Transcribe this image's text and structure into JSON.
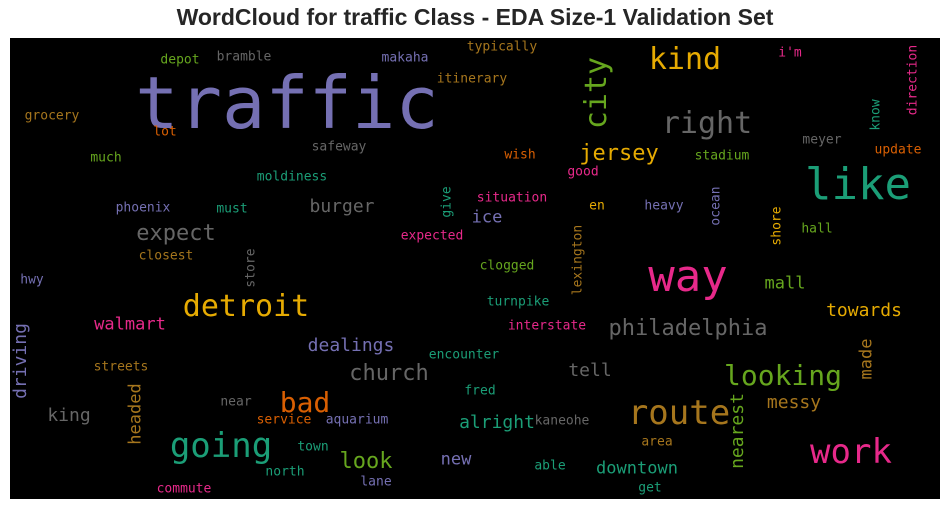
{
  "title": "WordCloud for traffic Class - EDA Size-1 Validation Set",
  "chart_data": {
    "type": "wordcloud",
    "title": "WordCloud for traffic Class - EDA Size-1 Validation Set",
    "background": "#000000",
    "palette": {
      "purple": "#7570b3",
      "green": "#1b9e77",
      "pink": "#e7298a",
      "orange": "#e6ab02",
      "brown": "#a6761d",
      "gray": "#666666",
      "lime": "#66a61e",
      "rust": "#d95f02"
    },
    "words": [
      {
        "text": "traffic",
        "color": "purple"
      },
      {
        "text": "way",
        "color": "pink"
      },
      {
        "text": "like",
        "color": "green"
      },
      {
        "text": "route",
        "color": "brown"
      },
      {
        "text": "going",
        "color": "green"
      },
      {
        "text": "detroit",
        "color": "orange"
      },
      {
        "text": "work",
        "color": "pink"
      },
      {
        "text": "kind",
        "color": "orange"
      },
      {
        "text": "right",
        "color": "gray"
      },
      {
        "text": "city",
        "color": "lime"
      },
      {
        "text": "looking",
        "color": "lime"
      },
      {
        "text": "philadelphia",
        "color": "gray"
      },
      {
        "text": "bad",
        "color": "rust"
      },
      {
        "text": "church",
        "color": "gray"
      },
      {
        "text": "jersey",
        "color": "orange"
      },
      {
        "text": "expect",
        "color": "gray"
      },
      {
        "text": "look",
        "color": "lime"
      },
      {
        "text": "driving",
        "color": "purple"
      },
      {
        "text": "dealings",
        "color": "purple"
      },
      {
        "text": "burger",
        "color": "gray"
      },
      {
        "text": "walmart",
        "color": "pink"
      },
      {
        "text": "nearest",
        "color": "lime"
      },
      {
        "text": "messy",
        "color": "brown"
      },
      {
        "text": "towards",
        "color": "orange"
      },
      {
        "text": "alright",
        "color": "green"
      },
      {
        "text": "downtown",
        "color": "green"
      },
      {
        "text": "king",
        "color": "gray"
      },
      {
        "text": "headed",
        "color": "brown"
      },
      {
        "text": "tell",
        "color": "gray"
      },
      {
        "text": "ice",
        "color": "purple"
      },
      {
        "text": "mall",
        "color": "lime"
      },
      {
        "text": "made",
        "color": "brown"
      },
      {
        "text": "new",
        "color": "purple"
      },
      {
        "text": "typically",
        "color": "brown"
      },
      {
        "text": "makaha",
        "color": "purple"
      },
      {
        "text": "bramble",
        "color": "gray"
      },
      {
        "text": "depot",
        "color": "lime"
      },
      {
        "text": "itinerary",
        "color": "brown"
      },
      {
        "text": "i'm",
        "color": "pink"
      },
      {
        "text": "direction",
        "color": "pink"
      },
      {
        "text": "know",
        "color": "green"
      },
      {
        "text": "grocery",
        "color": "brown"
      },
      {
        "text": "lot",
        "color": "rust"
      },
      {
        "text": "meyer",
        "color": "gray"
      },
      {
        "text": "update",
        "color": "rust"
      },
      {
        "text": "safeway",
        "color": "gray"
      },
      {
        "text": "much",
        "color": "lime"
      },
      {
        "text": "wish",
        "color": "rust"
      },
      {
        "text": "stadium",
        "color": "lime"
      },
      {
        "text": "good",
        "color": "pink"
      },
      {
        "text": "moldiness",
        "color": "green"
      },
      {
        "text": "situation",
        "color": "pink"
      },
      {
        "text": "give",
        "color": "green"
      },
      {
        "text": "ocean",
        "color": "purple"
      },
      {
        "text": "phoenix",
        "color": "purple"
      },
      {
        "text": "must",
        "color": "green"
      },
      {
        "text": "en",
        "color": "orange"
      },
      {
        "text": "heavy",
        "color": "purple"
      },
      {
        "text": "shore",
        "color": "orange"
      },
      {
        "text": "hall",
        "color": "lime"
      },
      {
        "text": "expected",
        "color": "pink"
      },
      {
        "text": "closest",
        "color": "brown"
      },
      {
        "text": "store",
        "color": "gray"
      },
      {
        "text": "lexington",
        "color": "brown"
      },
      {
        "text": "hwy",
        "color": "purple"
      },
      {
        "text": "clogged",
        "color": "lime"
      },
      {
        "text": "turnpike",
        "color": "green"
      },
      {
        "text": "interstate",
        "color": "pink"
      },
      {
        "text": "encounter",
        "color": "green"
      },
      {
        "text": "streets",
        "color": "brown"
      },
      {
        "text": "fred",
        "color": "green"
      },
      {
        "text": "near",
        "color": "gray"
      },
      {
        "text": "service",
        "color": "rust"
      },
      {
        "text": "aquarium",
        "color": "purple"
      },
      {
        "text": "kaneohe",
        "color": "gray"
      },
      {
        "text": "town",
        "color": "green"
      },
      {
        "text": "area",
        "color": "brown"
      },
      {
        "text": "north",
        "color": "green"
      },
      {
        "text": "able",
        "color": "green"
      },
      {
        "text": "lane",
        "color": "purple"
      },
      {
        "text": "commute",
        "color": "pink"
      },
      {
        "text": "get",
        "color": "green"
      }
    ]
  }
}
